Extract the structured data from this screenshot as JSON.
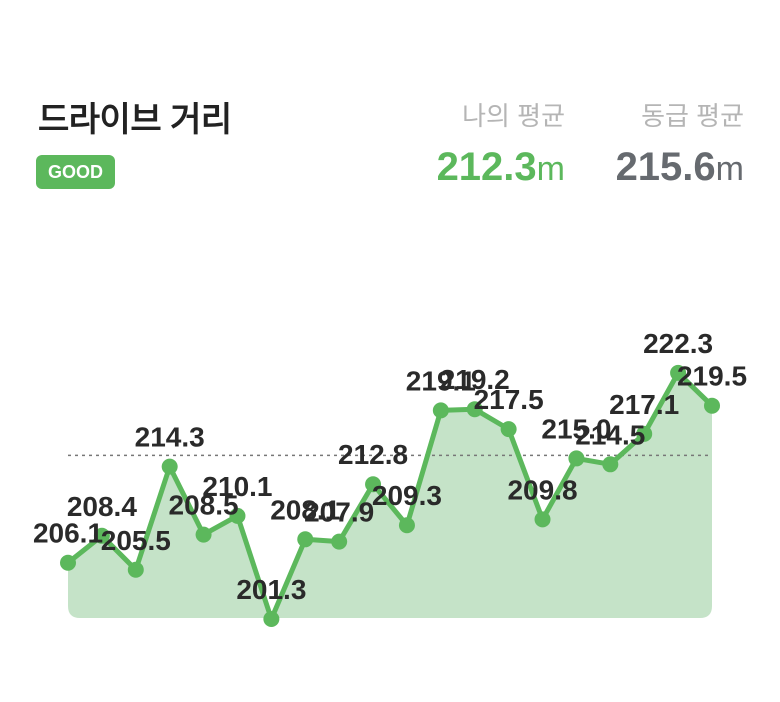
{
  "header": {
    "title": "드라이브 거리",
    "badge": "GOOD"
  },
  "stats": {
    "mine": {
      "label": "나의 평균",
      "value": "212.3",
      "unit": "m"
    },
    "class": {
      "label": "동급 평균",
      "value": "215.6",
      "unit": "m"
    }
  },
  "colors": {
    "accent": "#5cb85c",
    "area_fill": "#c5e3c8",
    "class_value": "#666a6f"
  },
  "chart_data": {
    "type": "line",
    "values": [
      206.1,
      208.4,
      205.5,
      214.3,
      208.5,
      210.1,
      201.3,
      208.1,
      207.9,
      212.8,
      209.3,
      219.1,
      219.2,
      217.5,
      209.8,
      215.0,
      214.5,
      217.1,
      222.3,
      219.5
    ],
    "reference_line": 215.6,
    "ylim": [
      198,
      224
    ],
    "grid": false
  }
}
